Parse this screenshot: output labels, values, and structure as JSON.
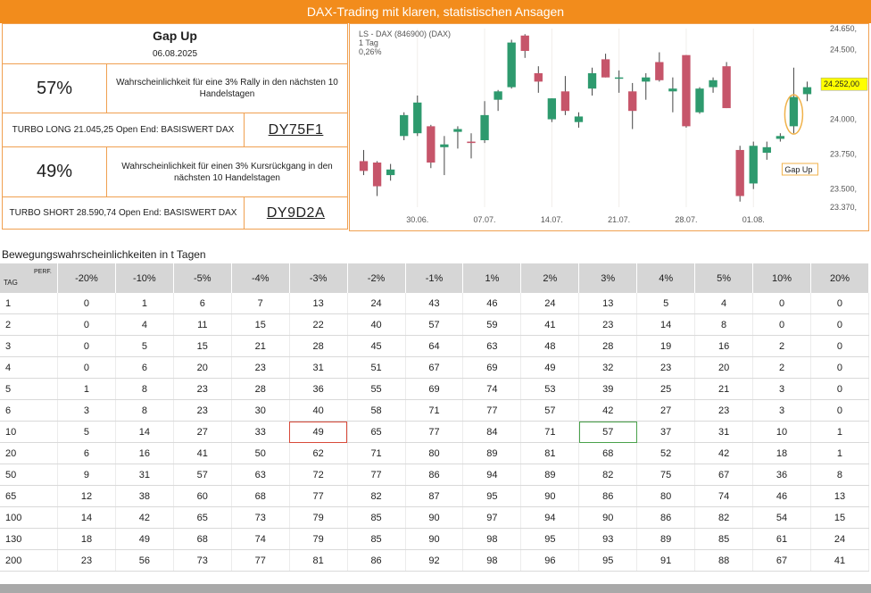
{
  "banner": "DAX-Trading mit klaren, statistischen Ansagen",
  "signal": {
    "title": "Gap Up",
    "date": "06.08.2025",
    "rally_pct": "57%",
    "rally_text": "Wahrscheinlichkeit für eine 3% Rally in den nächsten 10 Handelstagen",
    "long_product_text": "TURBO LONG 21.045,25 Open End: BASISWERT DAX",
    "long_code": "DY75F1",
    "decline_pct": "49%",
    "decline_text": "Wahrscheinlichkeit für einen 3% Kursrückgang in den nächsten 10 Handelstagen",
    "short_product_text": "TURBO SHORT 28.590,74 Open End: BASISWERT DAX",
    "short_code": "DY9D2A"
  },
  "chart_data": {
    "type": "candlestick",
    "header": [
      "LS - DAX (846900) (DAX)",
      "1 Tag",
      "0,26%"
    ],
    "ylim": [
      23370,
      24650
    ],
    "yticks": [
      24650,
      24500,
      24000,
      23750,
      23500,
      23370
    ],
    "ytick_labels": [
      "24.650,",
      "24.500,",
      "24.000,",
      "23.750,",
      "23.500,",
      "23.370,"
    ],
    "last_price": 24252,
    "last_price_label": "24.252,00",
    "xticks": [
      {
        "index": 4,
        "label": "30.06."
      },
      {
        "index": 9,
        "label": "07.07."
      },
      {
        "index": 14,
        "label": "14.07."
      },
      {
        "index": 19,
        "label": "21.07."
      },
      {
        "index": 24,
        "label": "28.07."
      },
      {
        "index": 29,
        "label": "01.08."
      }
    ],
    "annotation": {
      "label": "Gap Up",
      "index": 32
    },
    "candles": [
      {
        "o": 23700,
        "h": 23780,
        "l": 23600,
        "c": 23630
      },
      {
        "o": 23690,
        "h": 23700,
        "l": 23450,
        "c": 23520
      },
      {
        "o": 23600,
        "h": 23680,
        "l": 23560,
        "c": 23640
      },
      {
        "o": 23880,
        "h": 24050,
        "l": 23850,
        "c": 24030
      },
      {
        "o": 23900,
        "h": 24170,
        "l": 23880,
        "c": 24120
      },
      {
        "o": 23950,
        "h": 23960,
        "l": 23650,
        "c": 23690
      },
      {
        "o": 23800,
        "h": 23880,
        "l": 23600,
        "c": 23820
      },
      {
        "o": 23910,
        "h": 23950,
        "l": 23790,
        "c": 23930
      },
      {
        "o": 23840,
        "h": 23900,
        "l": 23720,
        "c": 23830
      },
      {
        "o": 23850,
        "h": 24130,
        "l": 23830,
        "c": 24030
      },
      {
        "o": 24140,
        "h": 24210,
        "l": 24060,
        "c": 24200
      },
      {
        "o": 24230,
        "h": 24570,
        "l": 24220,
        "c": 24550
      },
      {
        "o": 24600,
        "h": 24610,
        "l": 24440,
        "c": 24490
      },
      {
        "o": 24330,
        "h": 24380,
        "l": 24190,
        "c": 24270
      },
      {
        "o": 24000,
        "h": 24150,
        "l": 23980,
        "c": 24150
      },
      {
        "o": 24200,
        "h": 24310,
        "l": 24030,
        "c": 24060
      },
      {
        "o": 23980,
        "h": 24050,
        "l": 23940,
        "c": 24020
      },
      {
        "o": 24220,
        "h": 24370,
        "l": 24170,
        "c": 24330
      },
      {
        "o": 24430,
        "h": 24470,
        "l": 24300,
        "c": 24300
      },
      {
        "o": 24300,
        "h": 24350,
        "l": 24190,
        "c": 24300
      },
      {
        "o": 24200,
        "h": 24260,
        "l": 23930,
        "c": 24060
      },
      {
        "o": 24270,
        "h": 24330,
        "l": 24140,
        "c": 24300
      },
      {
        "o": 24410,
        "h": 24480,
        "l": 24270,
        "c": 24280
      },
      {
        "o": 24200,
        "h": 24300,
        "l": 24050,
        "c": 24220
      },
      {
        "o": 24460,
        "h": 24460,
        "l": 23940,
        "c": 23950
      },
      {
        "o": 24050,
        "h": 24230,
        "l": 24040,
        "c": 24220
      },
      {
        "o": 24230,
        "h": 24300,
        "l": 24190,
        "c": 24280
      },
      {
        "o": 24380,
        "h": 24410,
        "l": 24080,
        "c": 24080
      },
      {
        "o": 23780,
        "h": 23810,
        "l": 23410,
        "c": 23450
      },
      {
        "o": 23540,
        "h": 23840,
        "l": 23500,
        "c": 23810
      },
      {
        "o": 23760,
        "h": 23840,
        "l": 23710,
        "c": 23800
      },
      {
        "o": 23860,
        "h": 23900,
        "l": 23840,
        "c": 23880
      },
      {
        "o": 23950,
        "h": 24370,
        "l": 23900,
        "c": 24160
      },
      {
        "o": 24180,
        "h": 24270,
        "l": 24130,
        "c": 24230
      }
    ],
    "colors": {
      "up": "#2e9a6e",
      "down": "#c6556a",
      "wick": "#444444",
      "grid": "#f1eeea",
      "price_tag": "#ffff00",
      "annotation": "#f0b24a"
    }
  },
  "table": {
    "caption": "Bewegungswahrscheinlichkeiten in t Tagen",
    "corner_tag": "TAG",
    "corner_perf": "PERF.",
    "columns": [
      "-20%",
      "-10%",
      "-5%",
      "-4%",
      "-3%",
      "-2%",
      "-1%",
      "1%",
      "2%",
      "3%",
      "4%",
      "5%",
      "10%",
      "20%"
    ],
    "rows": [
      {
        "day": "1",
        "values": [
          "0",
          "1",
          "6",
          "7",
          "13",
          "24",
          "43",
          "46",
          "24",
          "13",
          "5",
          "4",
          "0",
          "0"
        ]
      },
      {
        "day": "2",
        "values": [
          "0",
          "4",
          "11",
          "15",
          "22",
          "40",
          "57",
          "59",
          "41",
          "23",
          "14",
          "8",
          "0",
          "0"
        ]
      },
      {
        "day": "3",
        "values": [
          "0",
          "5",
          "15",
          "21",
          "28",
          "45",
          "64",
          "63",
          "48",
          "28",
          "19",
          "16",
          "2",
          "0"
        ]
      },
      {
        "day": "4",
        "values": [
          "0",
          "6",
          "20",
          "23",
          "31",
          "51",
          "67",
          "69",
          "49",
          "32",
          "23",
          "20",
          "2",
          "0"
        ]
      },
      {
        "day": "5",
        "values": [
          "1",
          "8",
          "23",
          "28",
          "36",
          "55",
          "69",
          "74",
          "53",
          "39",
          "25",
          "21",
          "3",
          "0"
        ]
      },
      {
        "day": "6",
        "values": [
          "3",
          "8",
          "23",
          "30",
          "40",
          "58",
          "71",
          "77",
          "57",
          "42",
          "27",
          "23",
          "3",
          "0"
        ]
      },
      {
        "day": "10",
        "values": [
          "5",
          "14",
          "27",
          "33",
          "49",
          "65",
          "77",
          "84",
          "71",
          "57",
          "37",
          "31",
          "10",
          "1"
        ]
      },
      {
        "day": "20",
        "values": [
          "6",
          "16",
          "41",
          "50",
          "62",
          "71",
          "80",
          "89",
          "81",
          "68",
          "52",
          "42",
          "18",
          "1"
        ]
      },
      {
        "day": "50",
        "values": [
          "9",
          "31",
          "57",
          "63",
          "72",
          "77",
          "86",
          "94",
          "89",
          "82",
          "75",
          "67",
          "36",
          "8"
        ]
      },
      {
        "day": "65",
        "values": [
          "12",
          "38",
          "60",
          "68",
          "77",
          "82",
          "87",
          "95",
          "90",
          "86",
          "80",
          "74",
          "46",
          "13"
        ]
      },
      {
        "day": "100",
        "values": [
          "14",
          "42",
          "65",
          "73",
          "79",
          "85",
          "90",
          "97",
          "94",
          "90",
          "86",
          "82",
          "54",
          "15"
        ]
      },
      {
        "day": "130",
        "values": [
          "18",
          "49",
          "68",
          "74",
          "79",
          "85",
          "90",
          "98",
          "95",
          "93",
          "89",
          "85",
          "61",
          "24"
        ]
      },
      {
        "day": "200",
        "values": [
          "23",
          "56",
          "73",
          "77",
          "81",
          "86",
          "92",
          "98",
          "96",
          "95",
          "91",
          "88",
          "67",
          "41"
        ]
      }
    ],
    "highlight": {
      "red": "-3%",
      "green": "3%",
      "row": "10"
    }
  }
}
